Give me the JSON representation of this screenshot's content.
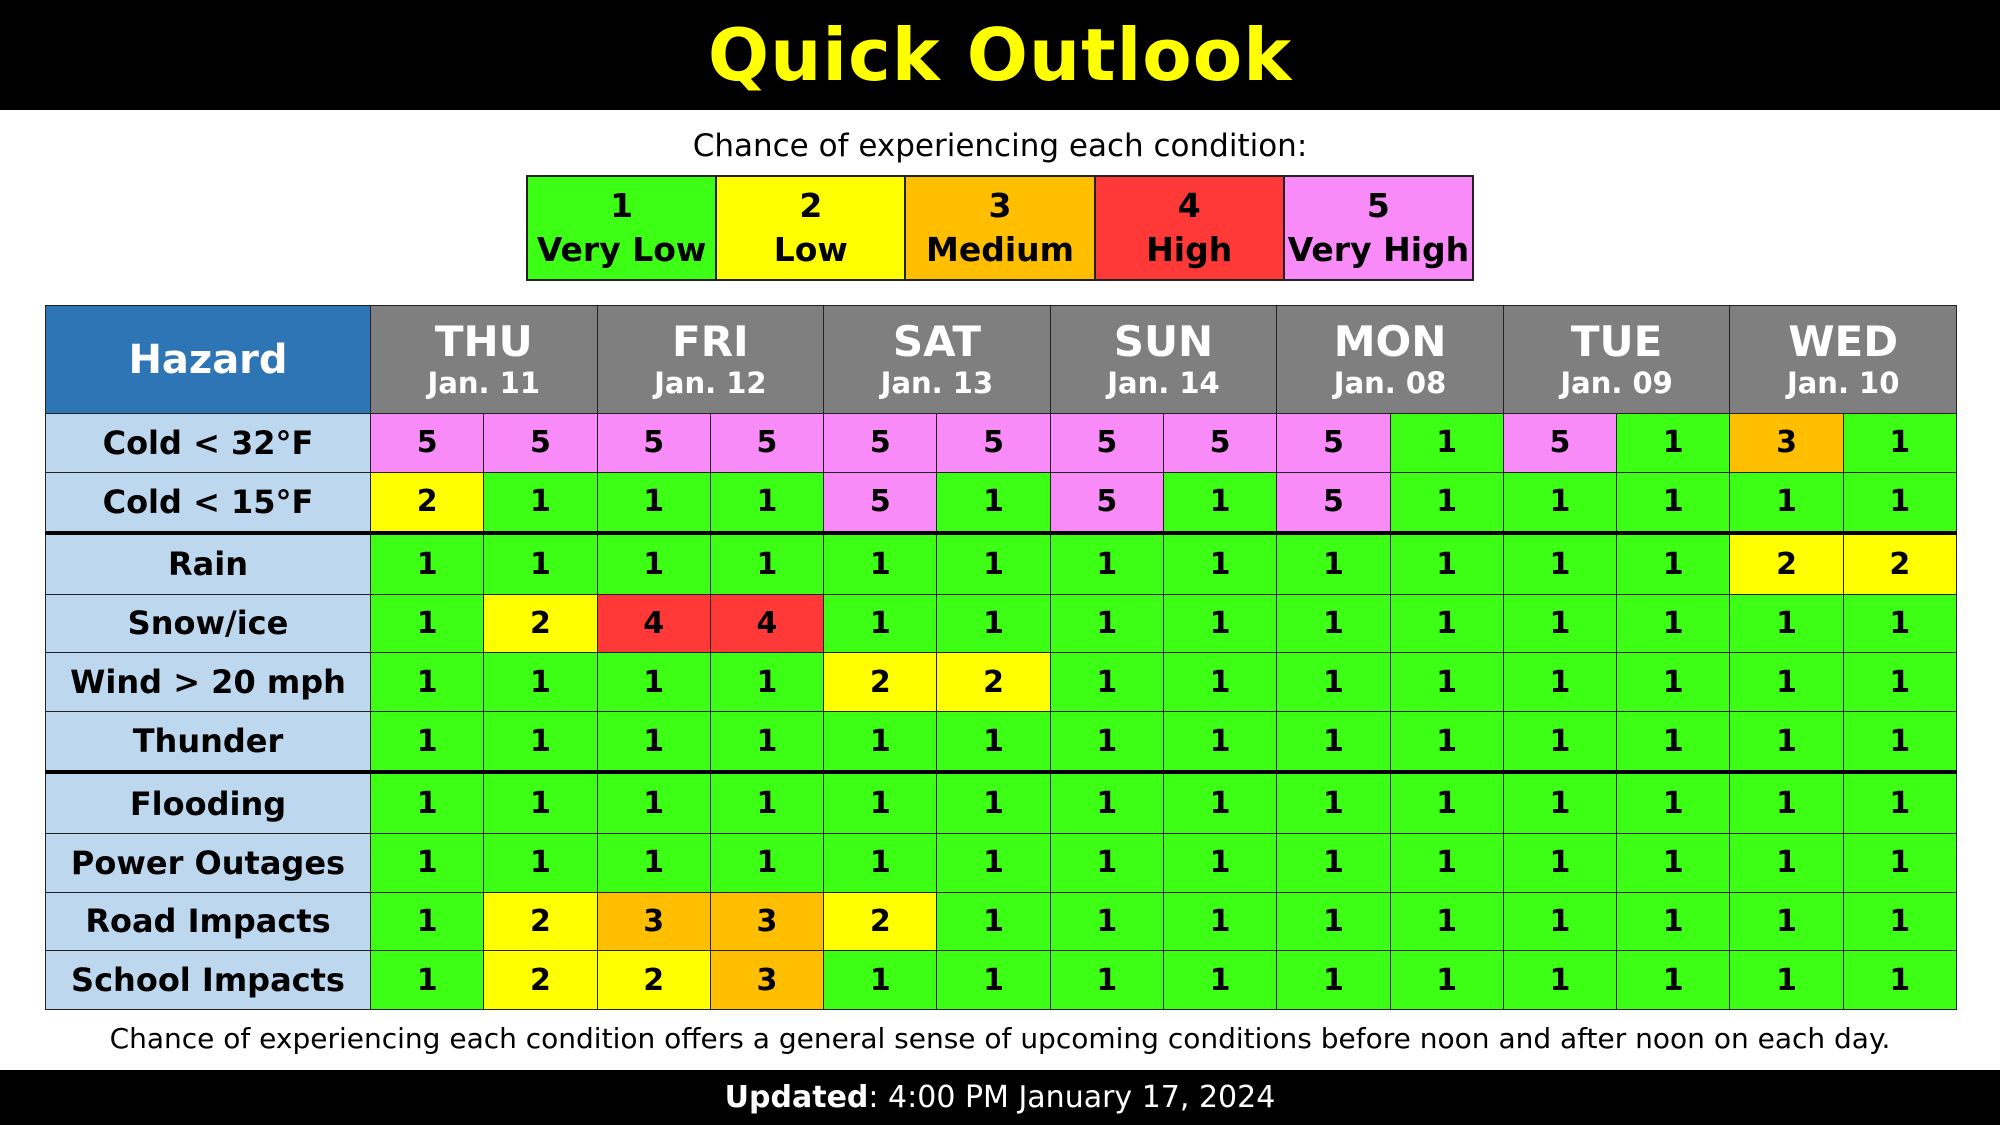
{
  "title": "Quick Outlook",
  "legend": {
    "caption": "Chance of experiencing each condition:",
    "levels": [
      {
        "num": "1",
        "label": "Very Low",
        "color": "#3dff16"
      },
      {
        "num": "2",
        "label": "Low",
        "color": "#ffff00"
      },
      {
        "num": "3",
        "label": "Medium",
        "color": "#ffbe00"
      },
      {
        "num": "4",
        "label": "High",
        "color": "#ff3838"
      },
      {
        "num": "5",
        "label": "Very High",
        "color": "#f98bf8"
      }
    ]
  },
  "table": {
    "hazard_header": "Hazard",
    "days": [
      {
        "name": "THU",
        "date": "Jan. 11"
      },
      {
        "name": "FRI",
        "date": "Jan. 12"
      },
      {
        "name": "SAT",
        "date": "Jan. 13"
      },
      {
        "name": "SUN",
        "date": "Jan. 14"
      },
      {
        "name": "MON",
        "date": "Jan. 08"
      },
      {
        "name": "TUE",
        "date": "Jan. 09"
      },
      {
        "name": "WED",
        "date": "Jan. 10"
      }
    ],
    "rows": [
      {
        "label": "Cold  < 32°F",
        "values": [
          5,
          5,
          5,
          5,
          5,
          5,
          5,
          5,
          5,
          1,
          5,
          1,
          3,
          1
        ]
      },
      {
        "label": "Cold  < 15°F",
        "values": [
          2,
          1,
          1,
          1,
          5,
          1,
          5,
          1,
          5,
          1,
          1,
          1,
          1,
          1
        ]
      },
      {
        "label": "Rain",
        "values": [
          1,
          1,
          1,
          1,
          1,
          1,
          1,
          1,
          1,
          1,
          1,
          1,
          2,
          2
        ]
      },
      {
        "label": "Snow/ice",
        "values": [
          1,
          2,
          4,
          4,
          1,
          1,
          1,
          1,
          1,
          1,
          1,
          1,
          1,
          1
        ]
      },
      {
        "label": "Wind > 20 mph",
        "values": [
          1,
          1,
          1,
          1,
          2,
          2,
          1,
          1,
          1,
          1,
          1,
          1,
          1,
          1
        ]
      },
      {
        "label": "Thunder",
        "values": [
          1,
          1,
          1,
          1,
          1,
          1,
          1,
          1,
          1,
          1,
          1,
          1,
          1,
          1
        ]
      },
      {
        "label": "Flooding",
        "values": [
          1,
          1,
          1,
          1,
          1,
          1,
          1,
          1,
          1,
          1,
          1,
          1,
          1,
          1
        ]
      },
      {
        "label": "Power Outages",
        "values": [
          1,
          1,
          1,
          1,
          1,
          1,
          1,
          1,
          1,
          1,
          1,
          1,
          1,
          1
        ]
      },
      {
        "label": "Road Impacts",
        "values": [
          1,
          2,
          3,
          3,
          2,
          1,
          1,
          1,
          1,
          1,
          1,
          1,
          1,
          1
        ]
      },
      {
        "label": "School Impacts",
        "values": [
          1,
          2,
          2,
          3,
          1,
          1,
          1,
          1,
          1,
          1,
          1,
          1,
          1,
          1
        ]
      }
    ]
  },
  "footnote": "Chance of experiencing each condition offers a general sense of upcoming conditions before noon and after noon on each day.",
  "updated": {
    "label": "Updated",
    "value": ": 4:00 PM January 17, 2024"
  }
}
